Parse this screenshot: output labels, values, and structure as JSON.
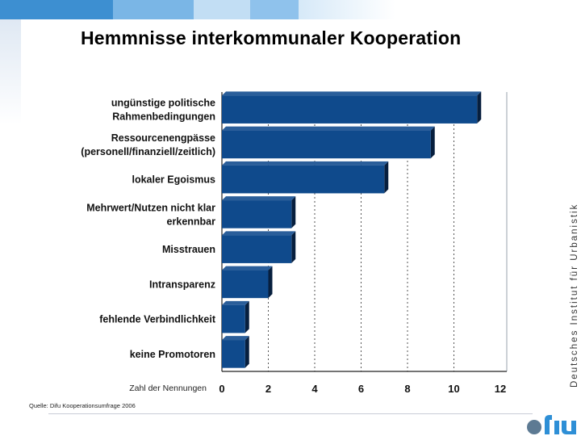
{
  "slide": {
    "title": "Hemmnisse interkommunaler Kooperation",
    "side_text": "Deutsches Institut für Urbanistik",
    "source": "Quelle: Difu Kooperationsumfrage 2006",
    "colors": {
      "bar": "#0f4a8c",
      "bar_shadow": "#071f3e",
      "accent": "#2e8fd6"
    }
  },
  "chart_data": {
    "type": "bar",
    "orientation": "horizontal",
    "categories": [
      [
        "ungünstige politische",
        "Rahmenbedingungen"
      ],
      [
        "Ressourcenengpässe",
        "(personell/finanziell/zeitlich)"
      ],
      [
        "lokaler Egoismus"
      ],
      [
        "Mehrwert/Nutzen nicht klar",
        "erkennbar"
      ],
      [
        "Misstrauen"
      ],
      [
        "Intransparenz"
      ],
      [
        "fehlende Verbindlichkeit"
      ],
      [
        "keine Promotoren"
      ]
    ],
    "values": [
      11,
      9,
      7,
      3,
      3,
      2,
      1,
      1
    ],
    "xlabel": "Zahl der Nennungen",
    "xlim": [
      0,
      12
    ],
    "xticks": [
      "0",
      "2",
      "4",
      "6",
      "8",
      "10",
      "12"
    ],
    "grid": "vertical dashed"
  }
}
